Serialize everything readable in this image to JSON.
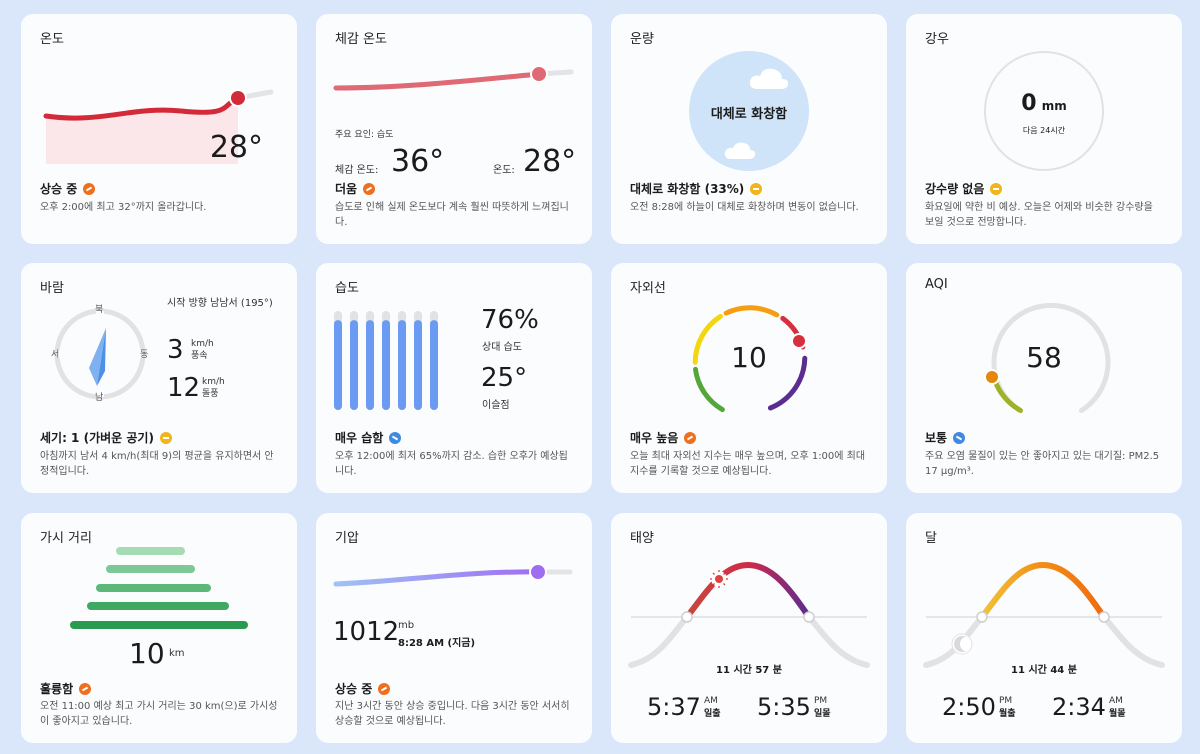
{
  "temp": {
    "title": "온도",
    "value": "28°",
    "status": "상승 중",
    "desc": "오후 2:00에 최고 32°까지 올라갑니다."
  },
  "feels": {
    "title": "체감 온도",
    "factor": "주요 요인: 습도",
    "feels_label": "체감 온도:",
    "feels_value": "36°",
    "temp_label": "온도:",
    "temp_value": "28°",
    "status": "더움",
    "desc": "습도로 인해 실제 온도보다 계속 훨씬 따뜻하게 느껴집니다."
  },
  "cloud": {
    "title": "운량",
    "center": "대체로 화창함",
    "status": "대체로 화창함 (33%)",
    "desc": "오전 8:28에 하늘이 대체로 화창하며 변동이 없습니다."
  },
  "rain": {
    "title": "강우",
    "value": "0",
    "unit": "mm",
    "sub": "다음 24시간",
    "status": "강수량 없음",
    "desc": "화요일에 약한 비 예상. 오늘은 어제와 비슷한 강수량을 보일 것으로 전망합니다."
  },
  "wind": {
    "title": "바람",
    "n": "북",
    "w": "서",
    "e": "동",
    "s": "남",
    "direction": "시작 방향 남남서 (195°)",
    "speed": "3",
    "speed_unit": "km/h",
    "speed_label": "풍속",
    "gust": "12",
    "gust_unit": "km/h",
    "gust_label": "돌풍",
    "status": "세기: 1 (가벼운 공기)",
    "desc": "아침까지 남서 4 km/h(최대 9)의 평균을 유지하면서 안정적입니다."
  },
  "humidity": {
    "title": "습도",
    "value": "76%",
    "label": "상대 습도",
    "dew": "25°",
    "dew_label": "이슬점",
    "status": "매우 습함",
    "desc": "오후 12:00에 최저 65%까지 감소. 습한 오후가 예상됩니다.",
    "bars": [
      0.9,
      0.9,
      0.9,
      0.9,
      0.9,
      0.9,
      0.9
    ]
  },
  "uv": {
    "title": "자외선",
    "value": "10",
    "status": "매우 높음",
    "desc": "오늘 최대 자외선 지수는 매우 높으며, 오후 1:00에 최대 지수를 기록할 것으로 예상됩니다."
  },
  "aqi": {
    "title": "AQI",
    "value": "58",
    "status": "보통",
    "desc": "주요 오염 물질이 있는 안 좋아지고 있는 대기질: PM2.5 17 μg/m³."
  },
  "visibility": {
    "title": "가시 거리",
    "value": "10",
    "unit": "km",
    "status": "훌륭함",
    "desc": "오전 11:00 예상 최고 가시 거리는 30 km(으)로 가시성이 좋아지고 있습니다."
  },
  "pressure": {
    "title": "기압",
    "value": "1012",
    "unit": "mb",
    "time": "8:28 AM (지금)",
    "status": "상승 중",
    "desc": "지난 3시간 동안 상승 중입니다. 다음 3시간 동안 서서히 상승할 것으로 예상됩니다."
  },
  "sun": {
    "title": "태양",
    "duration": "11 시간 57 분",
    "rise": "5:37",
    "rise_ampm": "AM",
    "rise_label": "일출",
    "set": "5:35",
    "set_ampm": "PM",
    "set_label": "일몰"
  },
  "moon": {
    "title": "달",
    "duration": "11 시간 44 분",
    "rise": "2:50",
    "rise_ampm": "PM",
    "rise_label": "월출",
    "set": "2:34",
    "set_ampm": "AM",
    "set_label": "월몰"
  }
}
